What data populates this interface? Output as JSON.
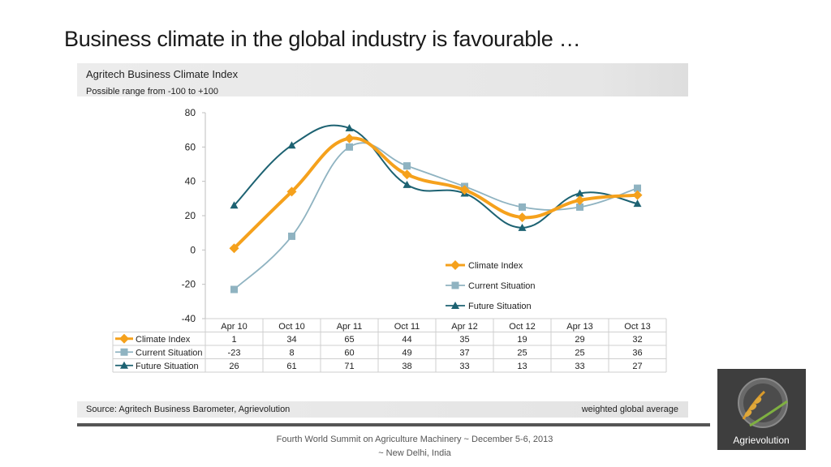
{
  "slide": {
    "title": "Business climate in the global industry is favourable …",
    "subtitle": "Agritech Business Climate Index",
    "range_note": "Possible range from -100 to +100",
    "source": "Source: Agritech Business Barometer, Agrievolution",
    "weight_note": "weighted global average",
    "conference": "Fourth World Summit on Agriculture Machinery ~ December 5-6, 2013 ~ New Delhi, India",
    "logo_text": "Agrievolution"
  },
  "chart_data": {
    "type": "line",
    "title": "Agritech Business Climate Index",
    "categories": [
      "Apr 10",
      "Oct 10",
      "Apr 11",
      "Oct 11",
      "Apr 12",
      "Oct 12",
      "Apr 13",
      "Oct 13"
    ],
    "y_ticks": [
      "80",
      "60",
      "40",
      "20",
      "0",
      "-20",
      "-40"
    ],
    "ylim": [
      -40,
      80
    ],
    "legend_position": "right",
    "series": [
      {
        "name": "Climate Index",
        "values": [
          1,
          34,
          65,
          44,
          35,
          19,
          29,
          32
        ],
        "color": "#f5a11c",
        "marker": "diamond"
      },
      {
        "name": "Current Situation",
        "values": [
          -23,
          8,
          60,
          49,
          37,
          25,
          25,
          36
        ],
        "color": "#8fb3c1",
        "marker": "square"
      },
      {
        "name": "Future Situation",
        "values": [
          26,
          61,
          71,
          38,
          33,
          13,
          33,
          27
        ],
        "color": "#1d6272",
        "marker": "triangle"
      }
    ],
    "table_rows": [
      {
        "label": "Climate Index",
        "values": [
          "1",
          "34",
          "65",
          "44",
          "35",
          "19",
          "29",
          "32"
        ]
      },
      {
        "label": "Current Situation",
        "values": [
          "-23",
          "8",
          "60",
          "49",
          "37",
          "25",
          "25",
          "36"
        ]
      },
      {
        "label": "Future Situation",
        "values": [
          "26",
          "61",
          "71",
          "38",
          "33",
          "13",
          "33",
          "27"
        ]
      }
    ]
  }
}
